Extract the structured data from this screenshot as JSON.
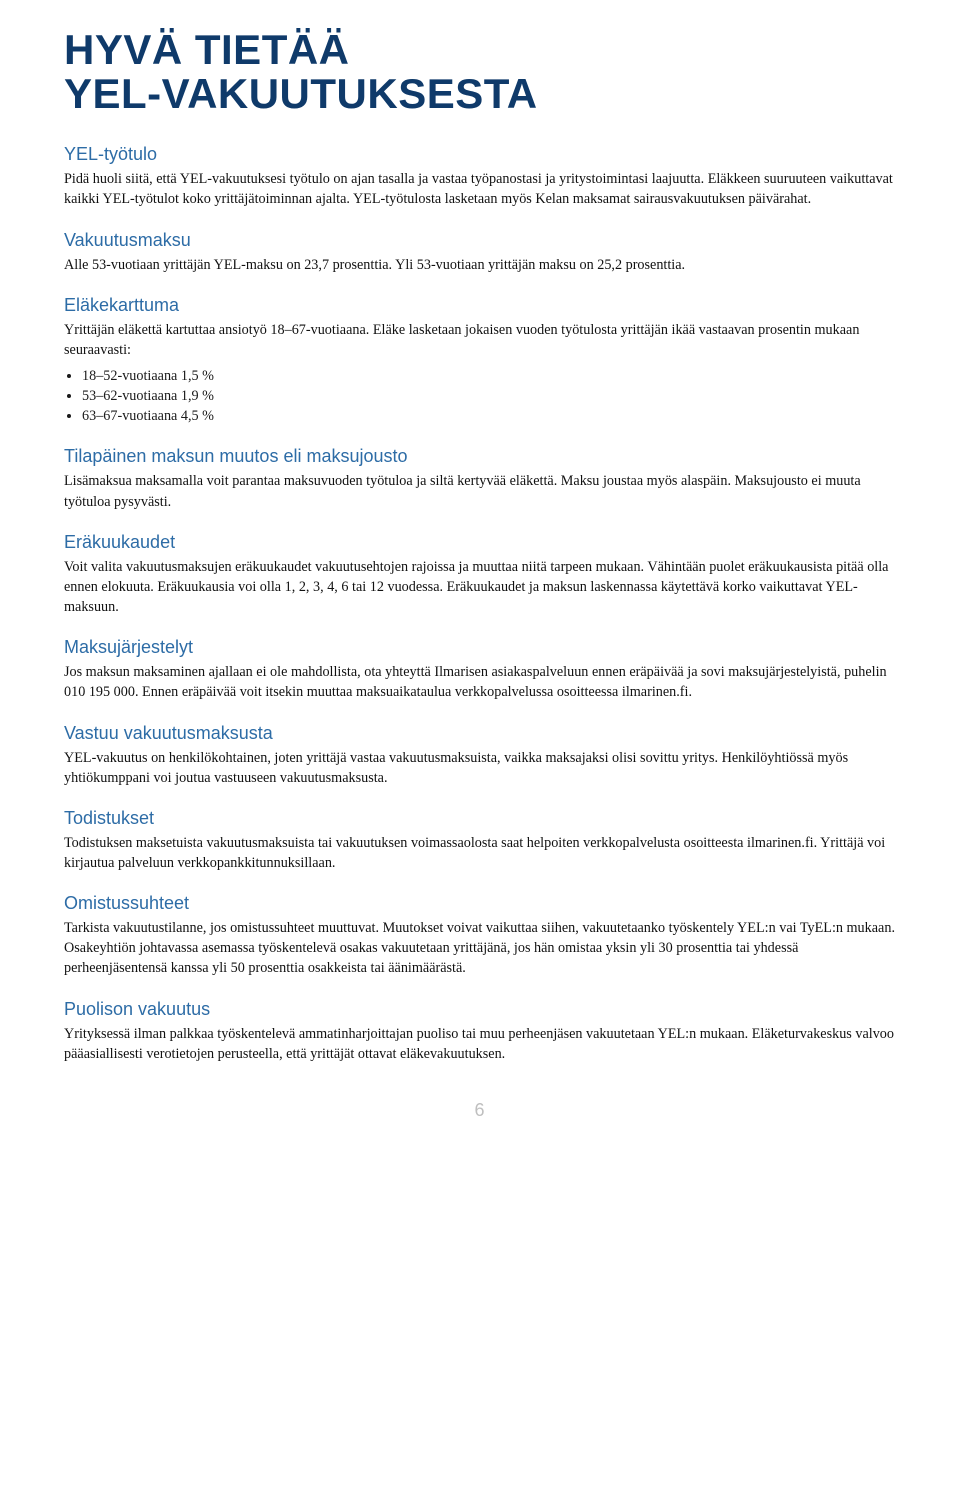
{
  "colors": {
    "title": "#0f3a6a",
    "heading": "#2d6ca6",
    "body": "#111111",
    "page_num": "#bfbfbf",
    "background": "#ffffff"
  },
  "typography": {
    "title_family": "Arial",
    "title_size_pt": 32,
    "title_weight": 800,
    "heading_family": "Arial",
    "heading_size_pt": 14,
    "heading_weight": 400,
    "body_family": "Georgia",
    "body_size_pt": 11,
    "body_line_height": 1.42
  },
  "title_line1": "HYVÄ TIETÄÄ",
  "title_line2": "YEL-VAKUUTUKSESTA",
  "sections": {
    "s0": {
      "heading": "YEL-työtulo",
      "p0": "Pidä huoli siitä, että YEL-vakuutuksesi työtulo on ajan tasalla ja vastaa työpanostasi ja yritystoimintasi laajuutta. Eläkkeen suuruuteen vaikuttavat kaikki YEL-työtulot koko yrittäjätoiminnan ajalta. YEL-työtulosta lasketaan myös Kelan maksamat sairausvakuutuksen päivärahat."
    },
    "s1": {
      "heading": "Vakuutusmaksu",
      "p0": "Alle 53-vuotiaan yrittäjän YEL-maksu on 23,7 prosenttia. Yli 53-vuotiaan yrittäjän maksu on 25,2 prosenttia."
    },
    "s2": {
      "heading": "Eläkekarttuma",
      "p0": "Yrittäjän eläkettä kartuttaa ansiotyö 18–67-vuotiaana. Eläke lasketaan jokaisen vuoden työtulosta yrittäjän ikää vastaavan prosentin mukaan seuraavasti:",
      "bullets": {
        "b0": "18–52-vuotiaana 1,5 %",
        "b1": "53–62-vuotiaana 1,9 %",
        "b2": "63–67-vuotiaana 4,5 %"
      }
    },
    "s3": {
      "heading": "Tilapäinen maksun muutos eli maksujousto",
      "p0": "Lisämaksua maksamalla voit parantaa maksuvuoden työtuloa ja siltä kertyvää eläkettä. Maksu joustaa myös alaspäin. Maksujousto ei muuta työtuloa pysyvästi."
    },
    "s4": {
      "heading": "Eräkuukaudet",
      "p0": "Voit valita vakuutusmaksujen eräkuukaudet vakuutusehtojen rajoissa ja muuttaa niitä tarpeen mukaan. Vähintään puolet eräkuukausista pitää olla ennen elokuuta. Eräkuukausia voi olla 1, 2, 3, 4, 6 tai 12 vuodessa. Eräkuukaudet ja maksun laskennassa käytettävä korko vaikuttavat YEL-maksuun."
    },
    "s5": {
      "heading": "Maksujärjestelyt",
      "p0": "Jos maksun maksaminen ajallaan ei ole mahdollista, ota yhteyttä Ilmarisen asiakaspalveluun ennen eräpäivää ja sovi maksujärjestelyistä, puhelin 010 195 000. Ennen eräpäivää voit itsekin muuttaa maksuaikataulua verkkopalvelussa osoitteessa ilmarinen.fi."
    },
    "s6": {
      "heading": "Vastuu vakuutusmaksusta",
      "p0": "YEL-vakuutus on henkilökohtainen, joten yrittäjä vastaa vakuutusmaksuista, vaikka maksajaksi olisi sovittu yritys. Henkilöyhtiössä myös yhtiökumppani voi joutua vastuuseen vakuutusmaksusta."
    },
    "s7": {
      "heading": "Todistukset",
      "p0": "Todistuksen maksetuista vakuutusmaksuista tai vakuutuksen voimassaolosta saat helpoiten verkkopalvelusta osoitteesta ilmarinen.fi. Yrittäjä voi kirjautua palveluun verkkopankkitunnuksillaan."
    },
    "s8": {
      "heading": "Omistussuhteet",
      "p0": "Tarkista vakuutustilanne, jos omistussuhteet muuttuvat. Muutokset voivat vaikuttaa siihen, vakuutetaanko työskentely YEL:n vai TyEL:n mukaan. Osakeyhtiön johtavassa asemassa työskentelevä osakas vakuutetaan yrittäjänä, jos hän omistaa yksin yli 30 prosenttia tai yhdessä perheenjäsentensä kanssa yli 50 prosenttia osakkeista tai äänimäärästä."
    },
    "s9": {
      "heading": "Puolison vakuutus",
      "p0": "Yrityksessä ilman palkkaa työskentelevä ammatinharjoittajan puoliso tai muu perheenjäsen vakuutetaan YEL:n mukaan. Eläketurvakeskus valvoo pääasiallisesti verotietojen perusteella, että yrittäjät ottavat eläkevakuutuksen."
    }
  },
  "page_number": "6"
}
